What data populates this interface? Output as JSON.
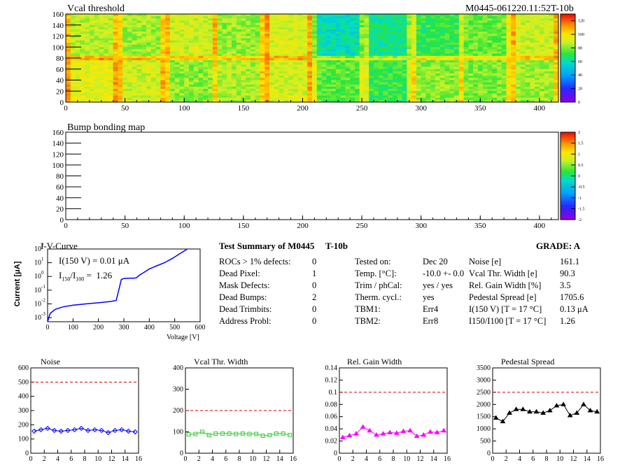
{
  "header": {
    "left_title": "Vcal threshold",
    "right_id": "M0445-061220.11:52T-10b"
  },
  "chart_data": [
    {
      "type": "heatmap",
      "title": "Vcal threshold",
      "xlim": [
        0,
        416
      ],
      "ylim": [
        0,
        160
      ],
      "xticks": [
        0,
        50,
        100,
        150,
        200,
        250,
        300,
        350,
        400
      ],
      "yticks": [
        0,
        20,
        40,
        60,
        80,
        100,
        120,
        140,
        160
      ],
      "colorbar": {
        "min": 0,
        "max": 130,
        "ticks": [
          0,
          20,
          40,
          60,
          80,
          100,
          120
        ]
      },
      "roc_level": {
        "top_row": [
          88,
          84,
          90,
          83,
          92,
          60,
          64,
          72,
          78,
          90
        ],
        "bottom_row": [
          94,
          90,
          82,
          86,
          91,
          76,
          72,
          82,
          80,
          84
        ]
      }
    },
    {
      "type": "heatmap",
      "title": "Bump bonding map",
      "xlim": [
        0,
        416
      ],
      "ylim": [
        0,
        160
      ],
      "xticks": [
        0,
        50,
        100,
        150,
        200,
        250,
        300,
        350,
        400
      ],
      "yticks": [
        0,
        20,
        40,
        60,
        80,
        100,
        120,
        140,
        160
      ],
      "colorbar": {
        "min": -2,
        "max": 2,
        "ticks": [
          -2,
          -1.5,
          -1,
          -0.5,
          0,
          0.5,
          1,
          1.5,
          2
        ]
      }
    },
    {
      "type": "line",
      "title": "I-V-Curve",
      "xlabel": "Voltage [V]",
      "ylabel": "Current [μA]",
      "xlim": [
        0,
        600
      ],
      "ylim_log10": [
        -3.3,
        2
      ],
      "xticks": [
        0,
        100,
        200,
        300,
        400,
        500,
        600
      ],
      "yticks_exp": [
        -3,
        -2,
        -1,
        0,
        1,
        2
      ],
      "annotations": [
        "I(150 V) = 0.01 μA",
        "I150/I100 = 1.26"
      ],
      "x": [
        0,
        10,
        30,
        60,
        100,
        150,
        200,
        250,
        270,
        280,
        290,
        300,
        320,
        340,
        350,
        360,
        380,
        400,
        430,
        460,
        490,
        520,
        550
      ],
      "y": [
        0.0005,
        0.002,
        0.004,
        0.006,
        0.008,
        0.01,
        0.012,
        0.015,
        0.018,
        0.1,
        0.6,
        0.7,
        0.75,
        0.75,
        0.8,
        1.2,
        2.0,
        3.5,
        6,
        10,
        20,
        45,
        110
      ]
    },
    {
      "type": "line",
      "title": "Noise",
      "xlim": [
        0,
        16
      ],
      "ylim": [
        0,
        600
      ],
      "threshold": 500,
      "xticks": [
        0,
        2,
        4,
        6,
        8,
        10,
        12,
        14,
        16
      ],
      "yticks": [
        0,
        100,
        200,
        300,
        400,
        500,
        600
      ],
      "x": [
        0.5,
        1.5,
        2.5,
        3.5,
        4.5,
        5.5,
        6.5,
        7.5,
        8.5,
        9.5,
        10.5,
        11.5,
        12.5,
        13.5,
        14.5,
        15.5
      ],
      "values": [
        155,
        165,
        175,
        160,
        155,
        160,
        165,
        175,
        160,
        165,
        160,
        145,
        160,
        165,
        155,
        150
      ],
      "color": "#0000ff",
      "marker": "diamond"
    },
    {
      "type": "line",
      "title": "Vcal Thr. Width",
      "xlim": [
        0,
        16
      ],
      "ylim": [
        0,
        400
      ],
      "threshold": 200,
      "xticks": [
        0,
        2,
        4,
        6,
        8,
        10,
        12,
        14,
        16
      ],
      "yticks": [
        0,
        100,
        200,
        300,
        400
      ],
      "x": [
        0.5,
        1.5,
        2.5,
        3.5,
        4.5,
        5.5,
        6.5,
        7.5,
        8.5,
        9.5,
        10.5,
        11.5,
        12.5,
        13.5,
        14.5,
        15.5
      ],
      "values": [
        88,
        90,
        100,
        85,
        92,
        92,
        92,
        90,
        92,
        90,
        90,
        82,
        85,
        92,
        92,
        85
      ],
      "color": "#33cc33",
      "marker": "square"
    },
    {
      "type": "line",
      "title": "Rel. Gain Width",
      "xlim": [
        0,
        16
      ],
      "ylim": [
        0,
        0.14
      ],
      "threshold": 0.1,
      "xticks": [
        0,
        2,
        4,
        6,
        8,
        10,
        12,
        14,
        16
      ],
      "yticks": [
        0,
        0.02,
        0.04,
        0.06,
        0.08,
        0.1,
        0.12,
        0.14
      ],
      "x": [
        0.5,
        1.5,
        2.5,
        3.5,
        4.5,
        5.5,
        6.5,
        7.5,
        8.5,
        9.5,
        10.5,
        11.5,
        12.5,
        13.5,
        14.5,
        15.5
      ],
      "values": [
        0.026,
        0.029,
        0.032,
        0.043,
        0.037,
        0.03,
        0.032,
        0.034,
        0.033,
        0.036,
        0.037,
        0.028,
        0.03,
        0.035,
        0.034,
        0.037
      ],
      "color": "#ff00ff",
      "marker": "triangle"
    },
    {
      "type": "line",
      "title": "Pedestal Spread",
      "xlim": [
        0,
        16
      ],
      "ylim": [
        0,
        3500
      ],
      "threshold": 2500,
      "xticks": [
        0,
        2,
        4,
        6,
        8,
        10,
        12,
        14,
        16
      ],
      "yticks": [
        0,
        500,
        1000,
        1500,
        2000,
        2500,
        3000,
        3500
      ],
      "x": [
        0.5,
        1.5,
        2.5,
        3.5,
        4.5,
        5.5,
        6.5,
        7.5,
        8.5,
        9.5,
        10.5,
        11.5,
        12.5,
        13.5,
        14.5,
        15.5
      ],
      "values": [
        1450,
        1300,
        1650,
        1800,
        1800,
        1700,
        1700,
        1650,
        1750,
        1950,
        2000,
        1550,
        1650,
        2000,
        1750,
        1700
      ],
      "color": "#000000",
      "marker": "triangle"
    }
  ],
  "summary": {
    "title": "Test Summary of M0445",
    "tag": "T-10b",
    "grade": "GRADE:  A",
    "left_rows": [
      {
        "label": "ROCs > 1% defects:",
        "value": "0"
      },
      {
        "label": "Dead Pixel:",
        "value": "1"
      },
      {
        "label": "Mask Defects:",
        "value": "0"
      },
      {
        "label": "Dead Bumps:",
        "value": "2"
      },
      {
        "label": "Dead Trimbits:",
        "value": "0"
      },
      {
        "label": "Address Probl:",
        "value": "0"
      }
    ],
    "mid_rows": [
      {
        "label": "Tested on:",
        "value": "Dec 20"
      },
      {
        "label": "Temp. [°C]:",
        "value": "-10.0 +- 0.0"
      },
      {
        "label": "Trim / phCal:",
        "value": "yes / yes"
      },
      {
        "label": "Therm. cycl.:",
        "value": "yes"
      },
      {
        "label": "TBM1:",
        "value": "Err4"
      },
      {
        "label": "TBM2:",
        "value": "Err8"
      }
    ],
    "right_rows": [
      {
        "label": "Noise [e]",
        "value": "161.1"
      },
      {
        "label": "Vcal Thr. Width [e]",
        "value": "90.3"
      },
      {
        "label": "Rel. Gain Width [%]",
        "value": "3.5"
      },
      {
        "label": "Pedestal Spread [e]",
        "value": "1705.6"
      },
      {
        "label": "I(150 V) [T = 17 °C]",
        "value": "0.13 μA"
      },
      {
        "label": "I150/I100 [T = 17 °C]",
        "value": "1.26"
      }
    ]
  }
}
